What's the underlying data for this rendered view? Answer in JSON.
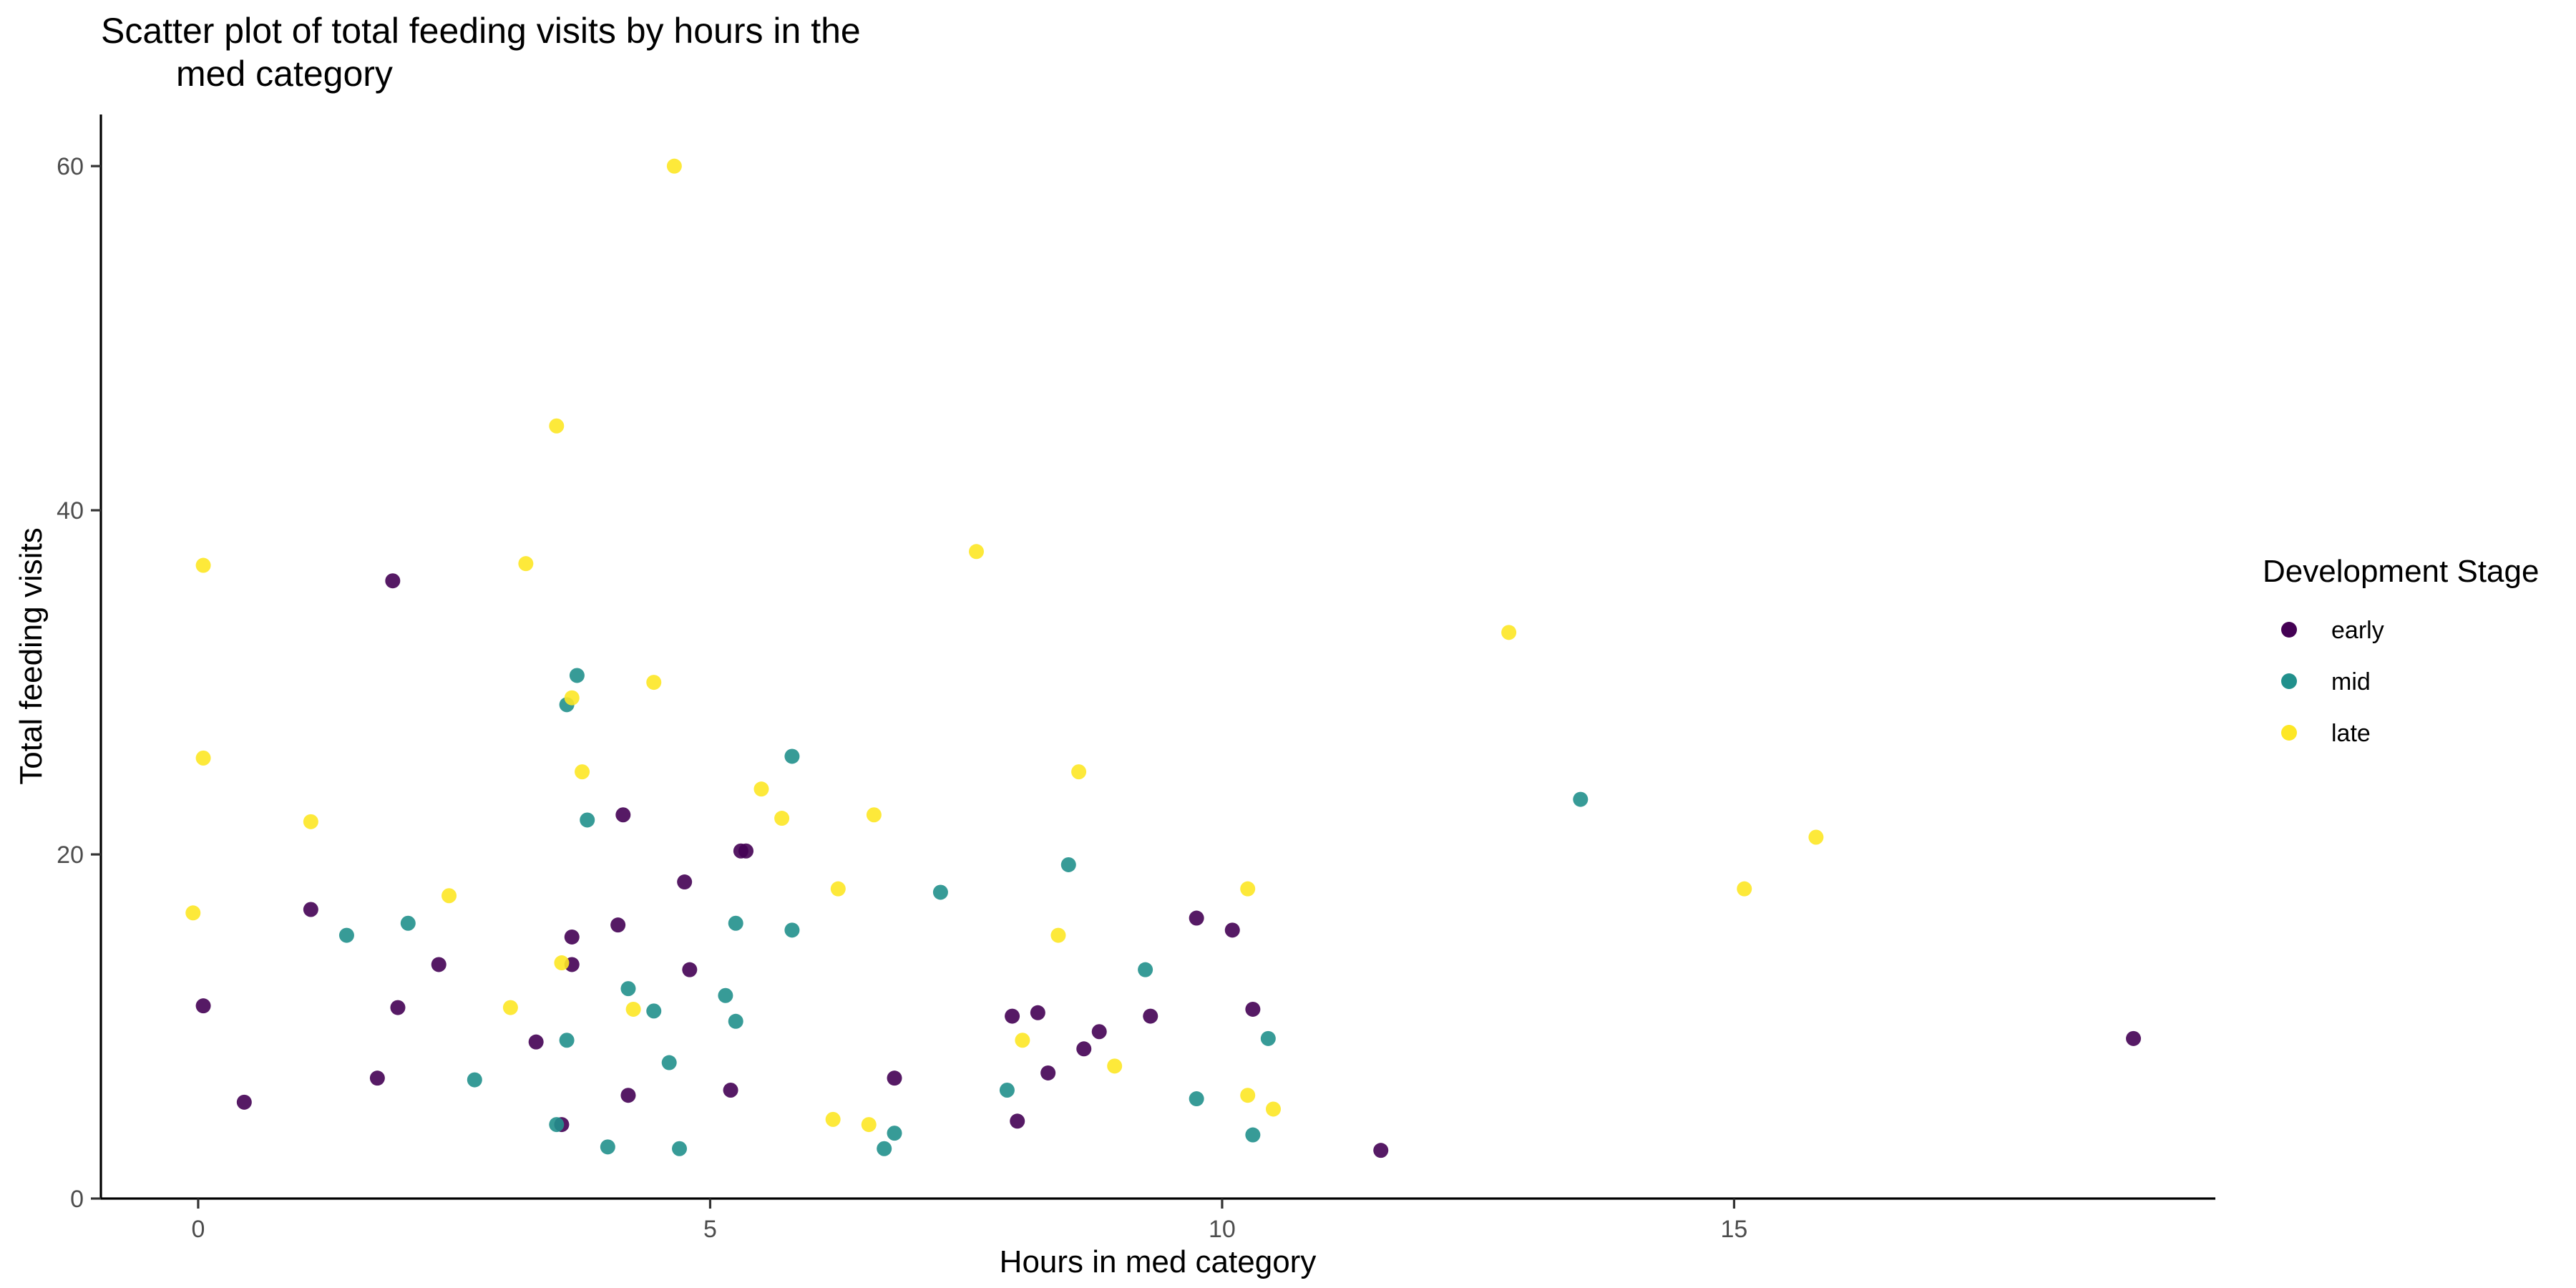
{
  "chart_data": {
    "type": "scatter",
    "title_lines": [
      "Scatter plot of total feeding visits by hours in the",
      "med category"
    ],
    "xlabel": "Hours in med category",
    "ylabel": "Total feeding visits",
    "xlim": [
      -0.95,
      19.7
    ],
    "ylim": [
      0,
      63
    ],
    "x_ticks": [
      0,
      5,
      10,
      15
    ],
    "y_ticks": [
      0,
      20,
      40,
      60
    ],
    "grid": false,
    "legend": {
      "title": "Development Stage",
      "position": "right"
    },
    "series": [
      {
        "name": "early",
        "color": "#440154",
        "points": [
          [
            0.05,
            11.2
          ],
          [
            0.45,
            5.6
          ],
          [
            1.1,
            16.8
          ],
          [
            1.75,
            7.0
          ],
          [
            1.9,
            35.9
          ],
          [
            1.95,
            11.1
          ],
          [
            2.35,
            13.6
          ],
          [
            3.3,
            9.1
          ],
          [
            3.55,
            4.3
          ],
          [
            3.65,
            15.2
          ],
          [
            3.65,
            13.6
          ],
          [
            4.1,
            15.9
          ],
          [
            4.15,
            22.3
          ],
          [
            4.2,
            6.0
          ],
          [
            4.75,
            18.4
          ],
          [
            4.8,
            13.3
          ],
          [
            5.2,
            6.3
          ],
          [
            5.3,
            20.2
          ],
          [
            5.35,
            20.2
          ],
          [
            6.8,
            7.0
          ],
          [
            7.95,
            10.6
          ],
          [
            8.0,
            4.5
          ],
          [
            8.2,
            10.8
          ],
          [
            8.3,
            7.3
          ],
          [
            8.65,
            8.7
          ],
          [
            8.8,
            9.7
          ],
          [
            9.3,
            10.6
          ],
          [
            9.75,
            16.3
          ],
          [
            10.1,
            15.6
          ],
          [
            10.3,
            11.0
          ],
          [
            11.55,
            2.8
          ],
          [
            18.9,
            9.3
          ]
        ]
      },
      {
        "name": "mid",
        "color": "#21908C",
        "points": [
          [
            1.45,
            15.3
          ],
          [
            2.05,
            16.0
          ],
          [
            2.7,
            6.9
          ],
          [
            3.5,
            4.3
          ],
          [
            3.6,
            9.2
          ],
          [
            3.6,
            28.7
          ],
          [
            3.7,
            30.4
          ],
          [
            3.8,
            22.0
          ],
          [
            4.0,
            3.0
          ],
          [
            4.2,
            12.2
          ],
          [
            4.45,
            10.9
          ],
          [
            4.6,
            7.9
          ],
          [
            4.7,
            2.9
          ],
          [
            5.15,
            11.8
          ],
          [
            5.25,
            10.3
          ],
          [
            5.25,
            16.0
          ],
          [
            5.8,
            15.6
          ],
          [
            5.8,
            25.7
          ],
          [
            6.7,
            2.9
          ],
          [
            6.8,
            3.8
          ],
          [
            7.25,
            17.8
          ],
          [
            7.9,
            6.3
          ],
          [
            8.5,
            19.4
          ],
          [
            9.25,
            13.3
          ],
          [
            9.75,
            5.8
          ],
          [
            10.3,
            3.7
          ],
          [
            10.45,
            9.3
          ],
          [
            13.5,
            23.2
          ]
        ]
      },
      {
        "name": "late",
        "color": "#FDE725",
        "points": [
          [
            -0.05,
            16.6
          ],
          [
            0.05,
            36.8
          ],
          [
            0.05,
            25.6
          ],
          [
            1.1,
            21.9
          ],
          [
            2.45,
            17.6
          ],
          [
            3.05,
            11.1
          ],
          [
            3.2,
            36.9
          ],
          [
            3.5,
            44.9
          ],
          [
            3.55,
            13.7
          ],
          [
            3.65,
            29.1
          ],
          [
            3.75,
            24.8
          ],
          [
            4.25,
            11.0
          ],
          [
            4.45,
            30.0
          ],
          [
            4.65,
            60.0
          ],
          [
            5.5,
            23.8
          ],
          [
            5.7,
            22.1
          ],
          [
            6.2,
            4.6
          ],
          [
            6.25,
            18.0
          ],
          [
            6.55,
            4.3
          ],
          [
            6.6,
            22.3
          ],
          [
            7.6,
            37.6
          ],
          [
            8.05,
            9.2
          ],
          [
            8.4,
            15.3
          ],
          [
            8.6,
            24.8
          ],
          [
            8.95,
            7.7
          ],
          [
            10.25,
            18.0
          ],
          [
            10.25,
            6.0
          ],
          [
            10.5,
            5.2
          ],
          [
            12.8,
            32.9
          ],
          [
            15.1,
            18.0
          ],
          [
            15.8,
            21.0
          ]
        ]
      }
    ]
  }
}
